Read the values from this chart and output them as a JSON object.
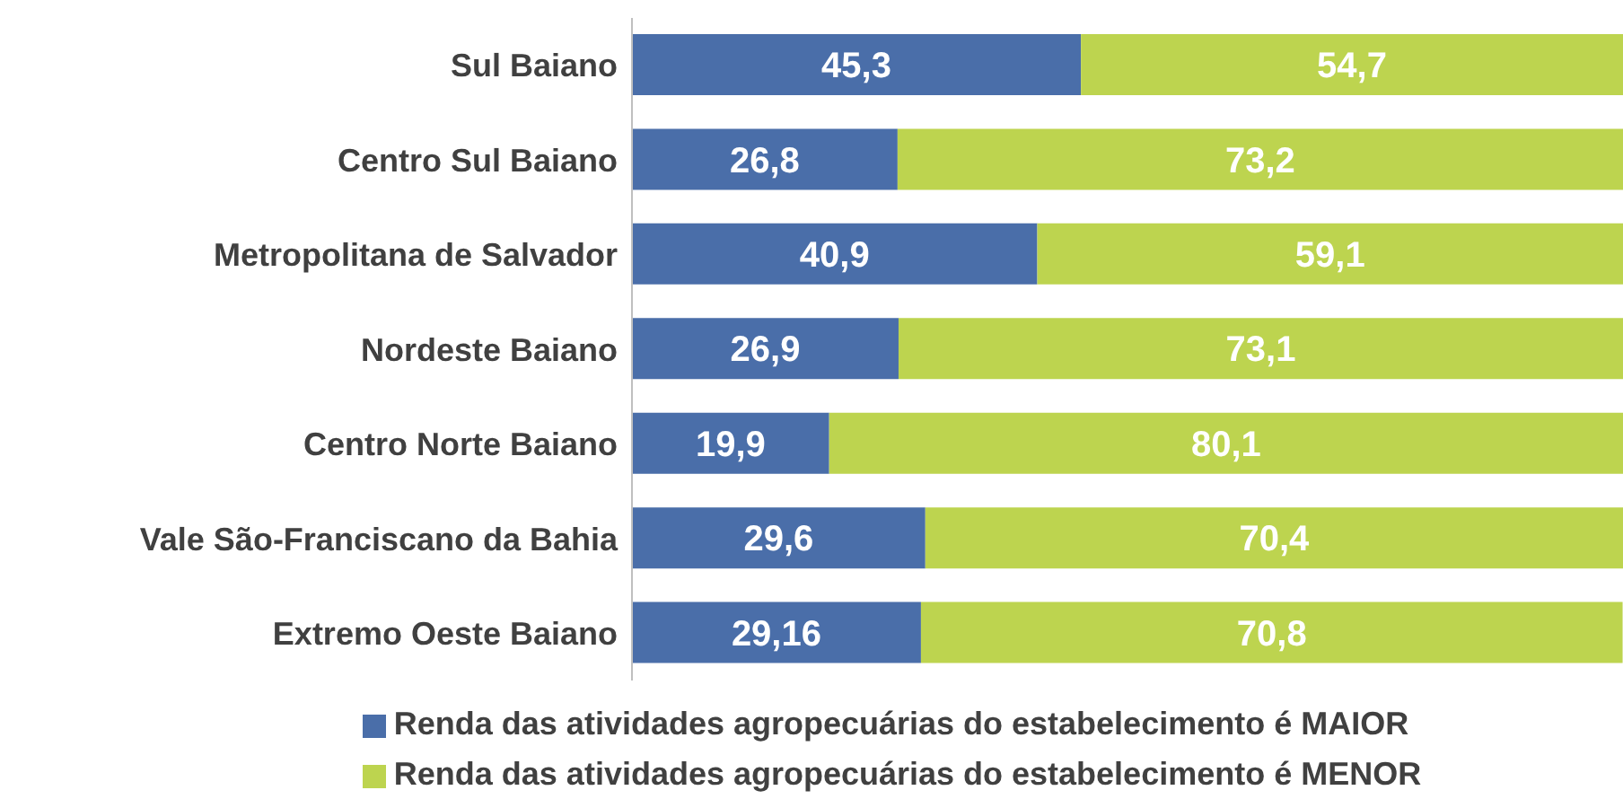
{
  "chart_data": {
    "type": "bar",
    "orientation": "horizontal",
    "stacked": true,
    "legend": "bottom",
    "grid": false,
    "categories": [
      "Sul Baiano",
      "Centro Sul Baiano",
      "Metropolitana de Salvador",
      "Nordeste Baiano",
      "Centro Norte Baiano",
      "Vale São-Franciscano da Bahia",
      "Extremo Oeste Baiano"
    ],
    "series": [
      {
        "name": "Renda das atividades agropecuárias do estabelecimento é MAIOR",
        "color": "#4a6ea9",
        "values": [
          45.3,
          26.8,
          40.9,
          26.9,
          19.9,
          29.6,
          29.16
        ],
        "value_labels": [
          "45,3",
          "26,8",
          "40,9",
          "26,9",
          "19,9",
          "29,6",
          "29,16"
        ]
      },
      {
        "name": "Renda das atividades agropecuárias do estabelecimento é MENOR",
        "color": "#bdd44f",
        "values": [
          54.7,
          73.2,
          59.1,
          73.1,
          80.1,
          70.4,
          70.8
        ],
        "value_labels": [
          "54,7",
          "73,2",
          "59,1",
          "73,1",
          "80,1",
          "70,4",
          "70,8"
        ]
      }
    ]
  }
}
